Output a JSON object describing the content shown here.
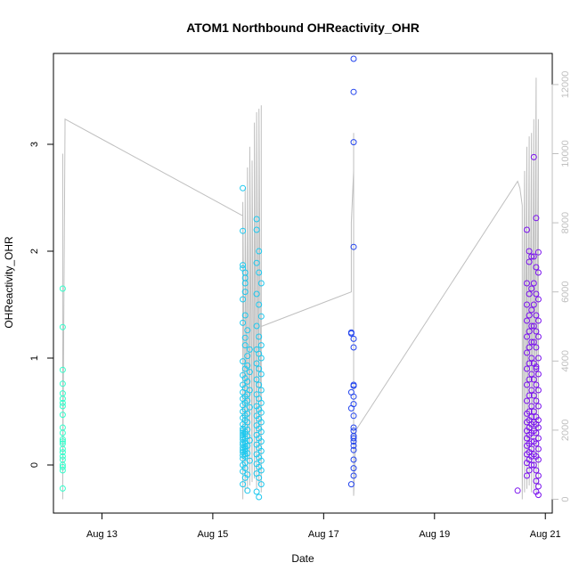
{
  "chart_data": {
    "type": "scatter",
    "title": "ATOM1 Northbound OHReactivity_OHR",
    "xlabel": "Date",
    "ylabel": "OHReactivity_OHR",
    "x_axis": {
      "kind": "date",
      "range": [
        "2024-08-12T03:00",
        "2024-08-21T03:00"
      ],
      "ticks": [
        {
          "x": "2024-08-13",
          "label": "Aug 13"
        },
        {
          "x": "2024-08-15",
          "label": "Aug 15"
        },
        {
          "x": "2024-08-17",
          "label": "Aug 17"
        },
        {
          "x": "2024-08-19",
          "label": "Aug 19"
        },
        {
          "x": "2024-08-21",
          "label": "Aug 21"
        }
      ]
    },
    "y_axis_left": {
      "range": [
        -0.45,
        3.85
      ],
      "ticks": [
        0,
        1,
        2,
        3
      ],
      "ticks_color": "#000000"
    },
    "y_axis_right": {
      "range": [
        -400,
        12900
      ],
      "ticks": [
        0,
        2000,
        4000,
        6000,
        8000,
        10000,
        12000
      ],
      "ticks_color": "#bfbfbf"
    },
    "grid": false,
    "colors": {
      "line": "#bfbfbf",
      "axis": "#000000"
    },
    "series": [
      {
        "color": "#33ffcc",
        "x": [
          "2024-08-12T07:00",
          "2024-08-12T07:00",
          "2024-08-12T07:00",
          "2024-08-12T07:00",
          "2024-08-12T07:00",
          "2024-08-12T07:00",
          "2024-08-12T07:00",
          "2024-08-12T07:00",
          "2024-08-12T07:00",
          "2024-08-12T07:00",
          "2024-08-12T07:00",
          "2024-08-12T07:00",
          "2024-08-12T07:00",
          "2024-08-12T07:00",
          "2024-08-12T07:00",
          "2024-08-12T07:00",
          "2024-08-12T07:00",
          "2024-08-12T07:00",
          "2024-08-12T07:00",
          "2024-08-12T07:00",
          "2024-08-12T07:00",
          "2024-08-12T07:00"
        ],
        "y": [
          1.65,
          1.29,
          0.89,
          0.76,
          0.67,
          0.62,
          0.58,
          0.55,
          0.47,
          0.35,
          0.3,
          0.24,
          0.22,
          0.2,
          0.15,
          0.12,
          0.08,
          0.05,
          0.0,
          -0.02,
          -0.05,
          -0.22
        ]
      },
      {
        "color": "#1ec8ee",
        "x": [
          "2024-08-15T13:00",
          "2024-08-15T13:00",
          "2024-08-15T13:00",
          "2024-08-15T13:00",
          "2024-08-15T14:00",
          "2024-08-15T14:00",
          "2024-08-15T14:00",
          "2024-08-15T14:00",
          "2024-08-15T13:00",
          "2024-08-15T14:00",
          "2024-08-15T13:00",
          "2024-08-15T15:00",
          "2024-08-15T14:00",
          "2024-08-15T14:00",
          "2024-08-15T16:00",
          "2024-08-15T15:00",
          "2024-08-15T13:00",
          "2024-08-15T15:00",
          "2024-08-15T14:00",
          "2024-08-15T16:00",
          "2024-08-15T13:00",
          "2024-08-15T14:00",
          "2024-08-15T15:00",
          "2024-08-15T13:00",
          "2024-08-15T14:00",
          "2024-08-15T16:00",
          "2024-08-15T13:00",
          "2024-08-15T15:00",
          "2024-08-15T14:00",
          "2024-08-15T13:00",
          "2024-08-15T15:00",
          "2024-08-15T14:00",
          "2024-08-15T13:00",
          "2024-08-15T16:00",
          "2024-08-15T14:00",
          "2024-08-15T13:00",
          "2024-08-15T15:00",
          "2024-08-15T14:00",
          "2024-08-15T13:00",
          "2024-08-15T14:00",
          "2024-08-15T15:00",
          "2024-08-15T13:00",
          "2024-08-15T14:00",
          "2024-08-15T13:00",
          "2024-08-15T15:00",
          "2024-08-15T13:00",
          "2024-08-15T14:00",
          "2024-08-15T13:00",
          "2024-08-15T14:00",
          "2024-08-15T13:00",
          "2024-08-15T15:00",
          "2024-08-15T13:00",
          "2024-08-15T14:00",
          "2024-08-15T13:00",
          "2024-08-15T16:00",
          "2024-08-15T14:00",
          "2024-08-15T13:00",
          "2024-08-15T14:00",
          "2024-08-15T13:00",
          "2024-08-15T15:00",
          "2024-08-15T14:00",
          "2024-08-15T13:00",
          "2024-08-15T14:00",
          "2024-08-15T13:00",
          "2024-08-15T14:00",
          "2024-08-15T13:00",
          "2024-08-15T15:00",
          "2024-08-15T14:00",
          "2024-08-15T13:00",
          "2024-08-15T14:00",
          "2024-08-15T13:00",
          "2024-08-15T16:00",
          "2024-08-15T14:00",
          "2024-08-15T13:00",
          "2024-08-15T14:00",
          "2024-08-15T13:00",
          "2024-08-15T15:00",
          "2024-08-15T14:00",
          "2024-08-15T13:00",
          "2024-08-15T15:00",
          "2024-08-15T19:00",
          "2024-08-15T19:00",
          "2024-08-15T20:00",
          "2024-08-15T19:00",
          "2024-08-15T20:00",
          "2024-08-15T21:00",
          "2024-08-15T19:00",
          "2024-08-15T20:00",
          "2024-08-15T21:00",
          "2024-08-15T19:00",
          "2024-08-15T20:00",
          "2024-08-15T21:00",
          "2024-08-15T19:00",
          "2024-08-15T20:00",
          "2024-08-15T21:00",
          "2024-08-15T19:00",
          "2024-08-15T20:00",
          "2024-08-15T21:00",
          "2024-08-15T19:00",
          "2024-08-15T20:00",
          "2024-08-15T21:00",
          "2024-08-15T19:00",
          "2024-08-15T20:00",
          "2024-08-15T21:00",
          "2024-08-15T19:00",
          "2024-08-15T20:00",
          "2024-08-15T21:00",
          "2024-08-15T19:00",
          "2024-08-15T20:00",
          "2024-08-15T21:00",
          "2024-08-15T19:00",
          "2024-08-15T20:00",
          "2024-08-15T21:00",
          "2024-08-15T19:00",
          "2024-08-15T20:00",
          "2024-08-15T21:00",
          "2024-08-15T19:00",
          "2024-08-15T20:00",
          "2024-08-15T21:00",
          "2024-08-15T19:00",
          "2024-08-15T20:00",
          "2024-08-15T21:00",
          "2024-08-15T19:00",
          "2024-08-15T20:00",
          "2024-08-15T21:00",
          "2024-08-15T19:00",
          "2024-08-15T20:00",
          "2024-08-15T21:00",
          "2024-08-15T19:00",
          "2024-08-15T20:00"
        ],
        "y": [
          2.59,
          2.19,
          1.87,
          1.84,
          1.8,
          1.75,
          1.7,
          1.62,
          1.55,
          1.4,
          1.33,
          1.26,
          1.19,
          1.12,
          1.08,
          1.02,
          0.97,
          0.93,
          0.9,
          0.87,
          0.84,
          0.81,
          0.78,
          0.75,
          0.72,
          0.7,
          0.68,
          0.66,
          0.64,
          0.62,
          0.6,
          0.58,
          0.56,
          0.54,
          0.52,
          0.5,
          0.48,
          0.46,
          0.44,
          0.42,
          0.4,
          0.38,
          0.36,
          0.34,
          0.33,
          0.32,
          0.31,
          0.3,
          0.29,
          0.28,
          0.27,
          0.26,
          0.25,
          0.24,
          0.23,
          0.22,
          0.21,
          0.2,
          0.19,
          0.18,
          0.17,
          0.16,
          0.15,
          0.14,
          0.13,
          0.12,
          0.11,
          0.1,
          0.09,
          0.08,
          0.06,
          0.04,
          0.02,
          0.0,
          -0.03,
          -0.06,
          -0.09,
          -0.12,
          -0.18,
          -0.24,
          2.3,
          2.2,
          2.0,
          1.89,
          1.8,
          1.7,
          1.6,
          1.5,
          1.39,
          1.3,
          1.2,
          1.12,
          1.08,
          1.04,
          1.0,
          0.95,
          0.9,
          0.85,
          0.8,
          0.75,
          0.7,
          0.66,
          0.62,
          0.58,
          0.55,
          0.52,
          0.49,
          0.46,
          0.43,
          0.4,
          0.37,
          0.34,
          0.31,
          0.28,
          0.25,
          0.22,
          0.19,
          0.16,
          0.13,
          0.1,
          0.07,
          0.04,
          0.01,
          -0.02,
          -0.05,
          -0.08,
          -0.12,
          -0.18,
          -0.25,
          -0.3
        ]
      },
      {
        "color": "#2244ee",
        "x": [
          "2024-08-17T13:00",
          "2024-08-17T13:00",
          "2024-08-17T13:00",
          "2024-08-17T13:00",
          "2024-08-17T12:00",
          "2024-08-17T12:00",
          "2024-08-17T13:00",
          "2024-08-17T13:00",
          "2024-08-17T13:00",
          "2024-08-17T13:00",
          "2024-08-17T12:00",
          "2024-08-17T13:00",
          "2024-08-17T13:00",
          "2024-08-17T12:00",
          "2024-08-17T13:00",
          "2024-08-17T13:00",
          "2024-08-17T13:00",
          "2024-08-17T13:00",
          "2024-08-17T13:00",
          "2024-08-17T13:00",
          "2024-08-17T13:00",
          "2024-08-17T13:00",
          "2024-08-17T13:00",
          "2024-08-17T13:00",
          "2024-08-17T12:00",
          "2024-08-17T13:00"
        ],
        "y": [
          3.8,
          3.49,
          3.02,
          2.04,
          1.24,
          1.23,
          1.18,
          1.1,
          0.75,
          0.74,
          0.68,
          0.64,
          0.57,
          0.53,
          0.46,
          0.35,
          0.32,
          0.27,
          0.25,
          0.22,
          0.18,
          0.14,
          0.05,
          -0.03,
          -0.18,
          -0.1
        ]
      },
      {
        "color": "#7a11ee",
        "x": [
          "2024-08-20T16:00",
          "2024-08-20T17:00",
          "2024-08-20T18:00",
          "2024-08-20T17:00",
          "2024-08-20T16:00",
          "2024-08-20T18:00",
          "2024-08-20T17:00",
          "2024-08-20T16:00",
          "2024-08-20T18:00",
          "2024-08-20T17:00",
          "2024-08-20T16:00",
          "2024-08-20T18:00",
          "2024-08-20T17:00",
          "2024-08-20T16:00",
          "2024-08-20T18:00",
          "2024-08-20T17:00",
          "2024-08-20T16:00",
          "2024-08-20T18:00",
          "2024-08-20T17:00",
          "2024-08-20T16:00",
          "2024-08-20T18:00",
          "2024-08-20T17:00",
          "2024-08-20T16:00",
          "2024-08-20T18:00",
          "2024-08-20T17:00",
          "2024-08-20T16:00",
          "2024-08-20T18:00",
          "2024-08-20T17:00",
          "2024-08-20T16:00",
          "2024-08-20T18:00",
          "2024-08-20T17:00",
          "2024-08-20T16:00",
          "2024-08-20T18:00",
          "2024-08-20T17:00",
          "2024-08-20T16:00",
          "2024-08-20T18:00",
          "2024-08-20T17:00",
          "2024-08-20T16:00",
          "2024-08-20T18:00",
          "2024-08-20T17:00",
          "2024-08-20T16:00",
          "2024-08-20T18:00",
          "2024-08-20T17:00",
          "2024-08-20T16:00",
          "2024-08-20T18:00",
          "2024-08-20T17:00",
          "2024-08-20T16:00",
          "2024-08-20T18:00",
          "2024-08-20T17:00",
          "2024-08-20T16:00",
          "2024-08-20T12:00",
          "2024-08-20T19:00",
          "2024-08-20T20:00",
          "2024-08-20T21:00",
          "2024-08-20T19:00",
          "2024-08-20T20:00",
          "2024-08-20T21:00",
          "2024-08-20T19:00",
          "2024-08-20T20:00",
          "2024-08-20T21:00",
          "2024-08-20T19:00",
          "2024-08-20T20:00",
          "2024-08-20T21:00",
          "2024-08-20T19:00",
          "2024-08-20T20:00",
          "2024-08-20T21:00",
          "2024-08-20T19:00",
          "2024-08-20T20:00",
          "2024-08-20T21:00",
          "2024-08-20T19:00",
          "2024-08-20T20:00",
          "2024-08-20T21:00",
          "2024-08-20T19:00",
          "2024-08-20T20:00",
          "2024-08-20T21:00",
          "2024-08-20T19:00",
          "2024-08-20T20:00",
          "2024-08-20T21:00",
          "2024-08-20T19:00",
          "2024-08-20T20:00",
          "2024-08-20T21:00",
          "2024-08-20T19:00",
          "2024-08-20T20:00",
          "2024-08-20T21:00",
          "2024-08-20T19:00",
          "2024-08-20T20:00",
          "2024-08-20T21:00",
          "2024-08-20T19:00",
          "2024-08-20T20:00",
          "2024-08-20T21:00",
          "2024-08-20T19:00",
          "2024-08-20T20:00",
          "2024-08-20T21:00",
          "2024-08-20T19:00",
          "2024-08-20T20:00",
          "2024-08-20T21:00",
          "2024-08-20T20:00",
          "2024-08-20T21:00",
          "2024-08-20T20:00",
          "2024-08-20T21:00",
          "2024-08-20T20:00"
        ],
        "y": [
          2.2,
          2.0,
          1.95,
          1.9,
          1.7,
          1.65,
          1.6,
          1.5,
          1.45,
          1.4,
          1.35,
          1.3,
          1.25,
          1.2,
          1.15,
          1.1,
          1.05,
          1.0,
          0.95,
          0.9,
          0.85,
          0.8,
          0.75,
          0.7,
          0.65,
          0.6,
          0.55,
          0.5,
          0.48,
          0.45,
          0.42,
          0.4,
          0.38,
          0.35,
          0.32,
          0.3,
          0.28,
          0.25,
          0.22,
          0.2,
          0.18,
          0.15,
          0.12,
          0.1,
          0.08,
          0.05,
          0.02,
          0.0,
          -0.05,
          -0.1,
          -0.24,
          2.88,
          2.31,
          1.99,
          1.95,
          1.85,
          1.8,
          1.7,
          1.6,
          1.55,
          1.5,
          1.4,
          1.35,
          1.3,
          1.25,
          1.2,
          1.15,
          1.1,
          1.0,
          0.95,
          0.9,
          0.85,
          0.8,
          0.75,
          0.7,
          0.65,
          0.6,
          0.55,
          0.5,
          0.45,
          0.42,
          0.4,
          0.38,
          0.35,
          0.32,
          0.3,
          0.25,
          0.22,
          0.2,
          0.15,
          0.1,
          0.08,
          0.05,
          0.0,
          -0.05,
          -0.1,
          -0.15,
          -0.2,
          -0.25,
          -0.28,
          0.92
        ]
      }
    ],
    "secondary_line": {
      "color": "#bfbfbf",
      "axis": "right",
      "points": [
        [
          "2024-08-12T07:00",
          0
        ],
        [
          "2024-08-12T07:00",
          10000
        ],
        [
          "2024-08-12T07:00",
          200
        ],
        [
          "2024-08-12T08:00",
          10800
        ],
        [
          "2024-08-12T08:00",
          11000
        ],
        [
          "2024-08-15T13:00",
          8200
        ],
        [
          "2024-08-15T13:00",
          0
        ],
        [
          "2024-08-15T13:00",
          8600
        ],
        [
          "2024-08-15T14:00",
          200
        ],
        [
          "2024-08-15T14:00",
          9000
        ],
        [
          "2024-08-15T15:00",
          300
        ],
        [
          "2024-08-15T15:00",
          9600
        ],
        [
          "2024-08-15T16:00",
          400
        ],
        [
          "2024-08-15T16:00",
          10200
        ],
        [
          "2024-08-15T17:00",
          500
        ],
        [
          "2024-08-15T17:00",
          9800
        ],
        [
          "2024-08-15T18:00",
          600
        ],
        [
          "2024-08-15T18:00",
          10900
        ],
        [
          "2024-08-15T19:00",
          300
        ],
        [
          "2024-08-15T19:00",
          11200
        ],
        [
          "2024-08-15T20:00",
          400
        ],
        [
          "2024-08-15T20:00",
          11300
        ],
        [
          "2024-08-15T21:00",
          200
        ],
        [
          "2024-08-15T21:00",
          11400
        ],
        [
          "2024-08-15T21:00",
          5000
        ],
        [
          "2024-08-17T12:00",
          6000
        ],
        [
          "2024-08-17T12:00",
          8000
        ],
        [
          "2024-08-17T13:00",
          9500
        ],
        [
          "2024-08-17T13:00",
          10600
        ],
        [
          "2024-08-17T13:00",
          100
        ],
        [
          "2024-08-17T14:00",
          2000
        ],
        [
          "2024-08-20T12:00",
          9200
        ],
        [
          "2024-08-20T13:00",
          9000
        ],
        [
          "2024-08-20T14:00",
          8500
        ],
        [
          "2024-08-20T14:00",
          0
        ],
        [
          "2024-08-20T15:00",
          9500
        ],
        [
          "2024-08-20T15:00",
          200
        ],
        [
          "2024-08-20T16:00",
          10200
        ],
        [
          "2024-08-20T16:00",
          300
        ],
        [
          "2024-08-20T17:00",
          10500
        ],
        [
          "2024-08-20T17:00",
          400
        ],
        [
          "2024-08-20T18:00",
          10600
        ],
        [
          "2024-08-20T18:00",
          200
        ],
        [
          "2024-08-20T19:00",
          11000
        ],
        [
          "2024-08-20T19:00",
          300
        ],
        [
          "2024-08-20T20:00",
          12200
        ],
        [
          "2024-08-20T20:00",
          200
        ],
        [
          "2024-08-20T21:00",
          11000
        ],
        [
          "2024-08-20T21:00",
          400
        ],
        [
          "2024-08-20T21:00",
          10800
        ]
      ]
    }
  }
}
